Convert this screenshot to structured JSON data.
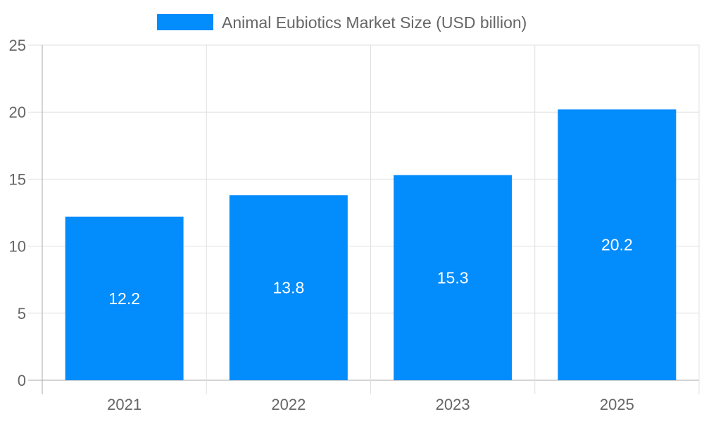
{
  "chart_data": {
    "type": "bar",
    "title": "",
    "xlabel": "",
    "ylabel": "",
    "categories": [
      "2021",
      "2022",
      "2023",
      "2025"
    ],
    "series": [
      {
        "name": "Animal Eubiotics Market Size (USD billion)",
        "values": [
          12.2,
          13.8,
          15.3,
          20.2
        ],
        "color": "#038cfc"
      }
    ],
    "data_labels": [
      "12.2",
      "13.8",
      "15.3",
      "20.2"
    ],
    "ylim": [
      0,
      25
    ],
    "yticks": [
      0,
      5,
      10,
      15,
      20,
      25
    ],
    "grid": true,
    "legend": "top-center"
  }
}
